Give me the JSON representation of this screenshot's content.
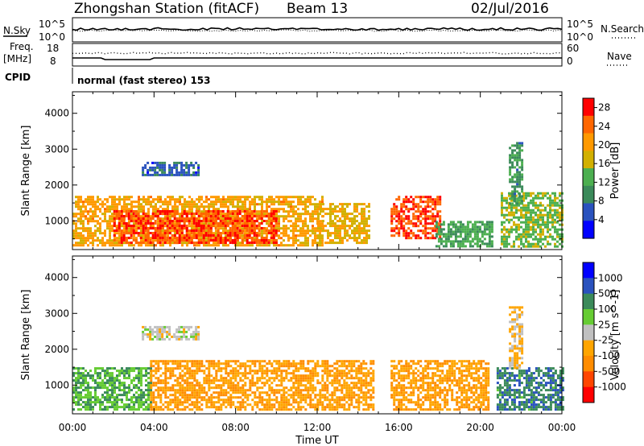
{
  "header": {
    "station": "Zhongshan Station (fitACF)",
    "beam": "Beam 13",
    "date": "02/Jul/2016"
  },
  "noise_panel": {
    "left_label": "N.Sky",
    "left_ticks": [
      "10^5",
      "10^0"
    ],
    "right_label": "N.Search",
    "right_ticks": [
      "10^5",
      "10^0"
    ]
  },
  "freq_panel": {
    "left_label_1": "Freq.",
    "left_label_2": "[MHz]",
    "left_ticks": [
      "18",
      "8"
    ],
    "right_label": "Nave",
    "right_ticks": [
      "60",
      "0"
    ]
  },
  "cpid": {
    "label": "CPID",
    "value": "normal (fast stereo) 153"
  },
  "colors": {
    "power": [
      "#0000ff",
      "#2a52be",
      "#3b8a5a",
      "#4caf50",
      "#d2b000",
      "#ff9900",
      "#ff6600",
      "#ff0000"
    ],
    "velocity": [
      "#ff0000",
      "#ff4500",
      "#ff8c00",
      "#ffa500",
      "#c0c0c0",
      "#66cc33",
      "#3b8a5a",
      "#2a52be",
      "#0000ff"
    ]
  },
  "chart_data": [
    {
      "type": "heatmap",
      "name": "power",
      "ylabel": "Slant Range [km]",
      "xlabel": "Time UT",
      "x_ticks": [
        "00:00",
        "04:00",
        "08:00",
        "12:00",
        "16:00",
        "20:00",
        "00:00"
      ],
      "y_ticks": [
        "1000",
        "2000",
        "3000",
        "4000"
      ],
      "ylim": [
        200,
        4600
      ],
      "xlim_hours": [
        0,
        24
      ],
      "colorbar": {
        "label": "Power [dB]",
        "ticks": [
          "4",
          "8",
          "12",
          "16",
          "20",
          "24",
          "28"
        ],
        "range": [
          0,
          30
        ]
      },
      "regions": [
        {
          "t0": 0.0,
          "t1": 12.3,
          "r0": 300,
          "r1": 1700,
          "value": 20
        },
        {
          "t0": 2.0,
          "t1": 10.0,
          "r0": 400,
          "r1": 1300,
          "value": 26
        },
        {
          "t0": 3.4,
          "t1": 6.2,
          "r0": 2250,
          "r1": 2650,
          "value": 6
        },
        {
          "t0": 12.0,
          "t1": 14.6,
          "r0": 400,
          "r1": 1500,
          "value": 18
        },
        {
          "t0": 15.6,
          "t1": 18.0,
          "r0": 500,
          "r1": 1700,
          "value": 26
        },
        {
          "t0": 17.8,
          "t1": 20.6,
          "r0": 300,
          "r1": 1000,
          "value": 12
        },
        {
          "t0": 21.0,
          "t1": 24.0,
          "r0": 300,
          "r1": 1800,
          "value": 14
        },
        {
          "t0": 21.4,
          "t1": 22.0,
          "r0": 1500,
          "r1": 3200,
          "value": 10
        }
      ]
    },
    {
      "type": "heatmap",
      "name": "velocity",
      "ylabel": "Slant Range [km]",
      "xlabel": "Time UT",
      "x_ticks": [
        "00:00",
        "04:00",
        "08:00",
        "12:00",
        "16:00",
        "20:00",
        "00:00"
      ],
      "y_ticks": [
        "1000",
        "2000",
        "3000",
        "4000"
      ],
      "ylim": [
        200,
        4600
      ],
      "xlim_hours": [
        0,
        24
      ],
      "colorbar": {
        "label": "Velocity [m s^-1]",
        "ticks": [
          "1000",
          "500",
          "100",
          "25",
          "-25",
          "-100",
          "-500",
          "-1000"
        ],
        "range": [
          -1000,
          1000
        ]
      },
      "regions": [
        {
          "t0": 0.0,
          "t1": 3.8,
          "r0": 300,
          "r1": 1500,
          "value": 300
        },
        {
          "t0": 3.8,
          "t1": 14.8,
          "r0": 300,
          "r1": 1700,
          "value": -300
        },
        {
          "t0": 3.4,
          "t1": 6.2,
          "r0": 2250,
          "r1": 2650,
          "value": 0
        },
        {
          "t0": 15.6,
          "t1": 20.4,
          "r0": 300,
          "r1": 1700,
          "value": -300
        },
        {
          "t0": 20.8,
          "t1": 24.0,
          "r0": 300,
          "r1": 1500,
          "value": 500
        },
        {
          "t0": 21.4,
          "t1": 22.0,
          "r0": 1500,
          "r1": 3200,
          "value": -150
        }
      ]
    }
  ]
}
